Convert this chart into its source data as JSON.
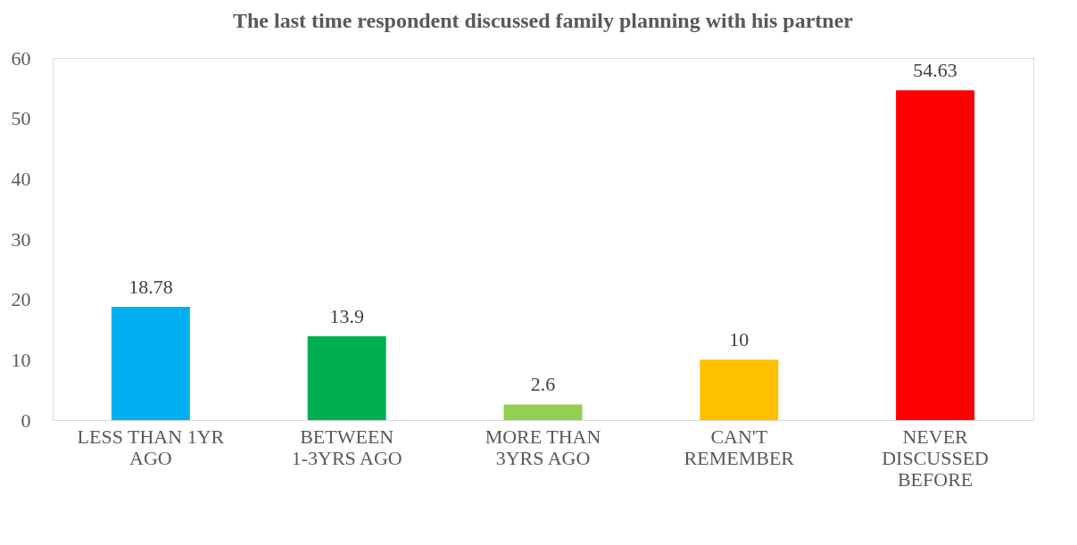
{
  "chart_data": {
    "type": "bar",
    "title": "The last time respondent discussed family planning with his partner",
    "categories": [
      "LESS THAN 1YR AGO",
      "BETWEEN 1-3YRS AGO",
      "MORE THAN 3YRS AGO",
      "CAN'T REMEMBER",
      "NEVER DISCUSSED BEFORE"
    ],
    "values": [
      18.78,
      13.9,
      2.6,
      10,
      54.63
    ],
    "colors": [
      "#00b0f0",
      "#00b050",
      "#92d050",
      "#ffc000",
      "#ff0000"
    ],
    "ylim": [
      0,
      60
    ],
    "yticks": [
      0,
      10,
      20,
      30,
      40,
      50,
      60
    ],
    "grid": false,
    "data_labels": true
  }
}
